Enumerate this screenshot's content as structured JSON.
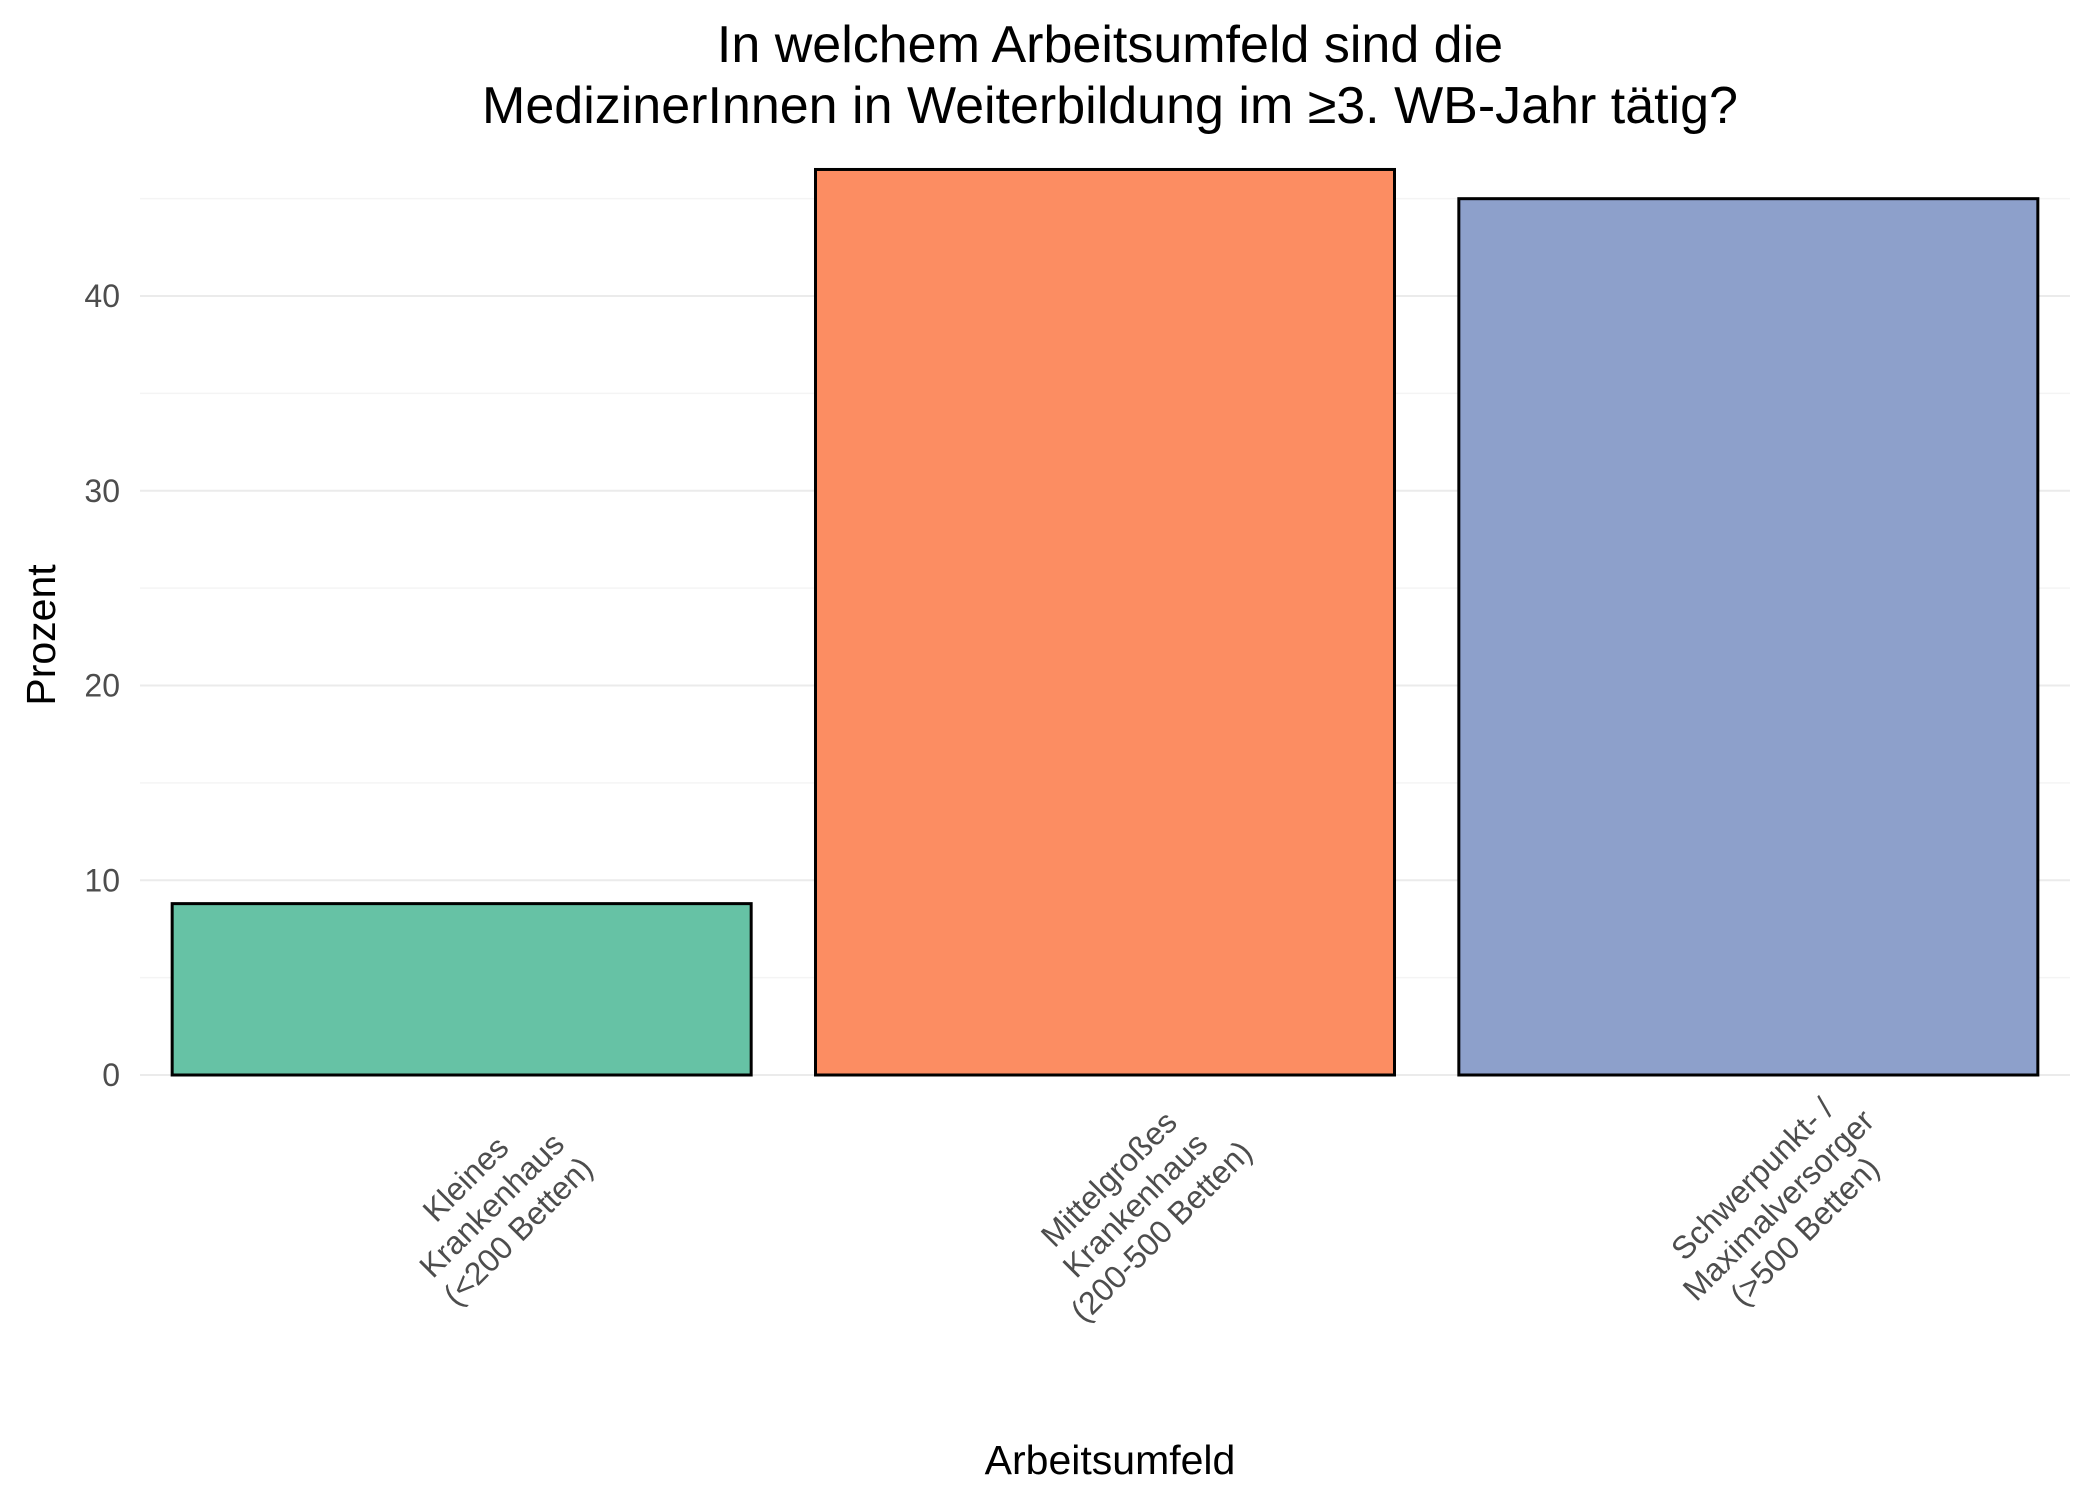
{
  "chart_data": {
    "type": "bar",
    "title_lines": [
      "In welchem Arbeitsumfeld sind die",
      "MedizinerInnen in Weiterbildung im ≥3. WB-Jahr tätig?"
    ],
    "xlabel": "Arbeitsumfeld",
    "ylabel": "Prozent",
    "ylim": [
      0,
      47.5
    ],
    "yticks": [
      0,
      10,
      20,
      30,
      40
    ],
    "grid": true,
    "legend": "none",
    "categories": [
      {
        "lines": [
          "Kleines",
          "Krankenhaus",
          "(<200 Betten)"
        ],
        "value": 8.8,
        "color": "#66c2a5"
      },
      {
        "lines": [
          "Mittelgroßes",
          "Krankenhaus",
          "(200-500 Betten)"
        ],
        "value": 46.5,
        "color": "#fc8d62"
      },
      {
        "lines": [
          "Schwerpunkt- /",
          "Maximalversorger",
          "(>500 Betten)"
        ],
        "value": 45.0,
        "color": "#8da0cb"
      }
    ]
  }
}
